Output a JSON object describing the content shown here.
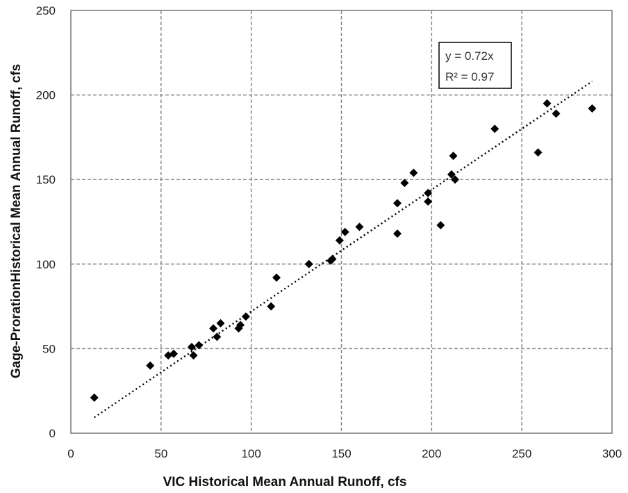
{
  "chart_data": {
    "type": "scatter",
    "xlabel": "VIC Historical  Mean Annual Runoff, cfs",
    "ylabel": "Gage-ProrationHistorical  Mean Annual Runoff, cfs",
    "xlim": [
      0,
      300
    ],
    "ylim": [
      0,
      250
    ],
    "x_ticks": [
      "0",
      "50",
      "100",
      "150",
      "200",
      "250",
      "300"
    ],
    "y_ticks": [
      "0",
      "50",
      "100",
      "150",
      "200",
      "250"
    ],
    "grid": "dashed",
    "series": [
      {
        "marker": "diamond",
        "color": "#000000",
        "points": [
          [
            13,
            21
          ],
          [
            44,
            40
          ],
          [
            54,
            46
          ],
          [
            57,
            47
          ],
          [
            67,
            51
          ],
          [
            68,
            46
          ],
          [
            71,
            52
          ],
          [
            79,
            62
          ],
          [
            81,
            57
          ],
          [
            83,
            65
          ],
          [
            93,
            62
          ],
          [
            94,
            64
          ],
          [
            97,
            69
          ],
          [
            111,
            75
          ],
          [
            114,
            92
          ],
          [
            132,
            100
          ],
          [
            144,
            102
          ],
          [
            145,
            103
          ],
          [
            149,
            114
          ],
          [
            152,
            119
          ],
          [
            160,
            122
          ],
          [
            181,
            136
          ],
          [
            181,
            118
          ],
          [
            185,
            148
          ],
          [
            190,
            154
          ],
          [
            198,
            142
          ],
          [
            198,
            137
          ],
          [
            205,
            123
          ],
          [
            211,
            153
          ],
          [
            212,
            164
          ],
          [
            213,
            150
          ],
          [
            235,
            180
          ],
          [
            259,
            166
          ],
          [
            264,
            195
          ],
          [
            269,
            189
          ],
          [
            289,
            192
          ]
        ]
      }
    ],
    "trendline": {
      "type": "linear",
      "slope": 0.72,
      "x_range": [
        13,
        289
      ],
      "style": "dotted",
      "equation_label": "y = 0.72x",
      "r2_label": "R² = 0.97"
    }
  }
}
